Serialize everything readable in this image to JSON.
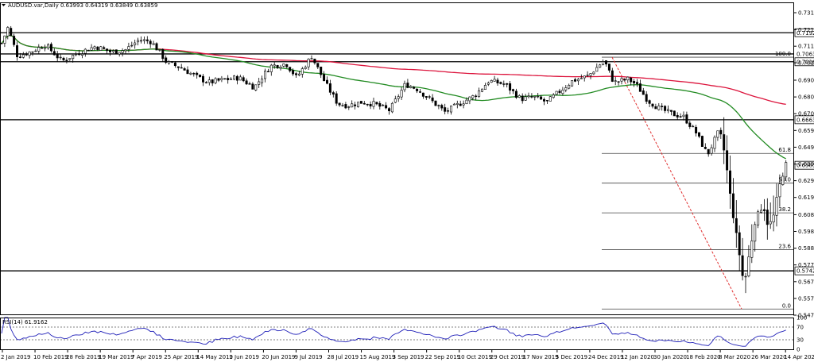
{
  "chart_data": {
    "type": "candlestick",
    "header": {
      "symbol": "AUDUSD.var,Daily",
      "ohlc": "0.63993 0.64319 0.63849 0.63859"
    },
    "price_axis": {
      "ticks": [
        "0.73150",
        "0.72120",
        "0.71110",
        "0.70100",
        "0.69040",
        "0.68020",
        "0.67000",
        "0.65980",
        "0.64960",
        "0.63930",
        "0.62920",
        "0.61900",
        "0.60850",
        "0.59830",
        "0.58810",
        "0.57790",
        "0.56770",
        "0.55750",
        "0.54730"
      ],
      "ylim": [
        0.5473,
        0.7315
      ]
    },
    "time_axis": {
      "labels": [
        "2 Jan 2019",
        "10 Feb 2019",
        "28 Feb 2019",
        "19 Mar 2019",
        "7 Apr 2019",
        "25 Apr 2019",
        "14 May 2019",
        "2 Jun 2019",
        "20 Jun 2019",
        "9 Jul 2019",
        "28 Jul 2019",
        "15 Aug 2019",
        "3 Sep 2019",
        "22 Sep 2019",
        "10 Oct 2019",
        "29 Oct 2019",
        "17 Nov 2019",
        "5 Dec 2019",
        "24 Dec 2019",
        "12 Jan 2020",
        "30 Jan 2020",
        "18 Feb 2020",
        "8 Mar 2020",
        "26 Mar 2020",
        "14 Apr 2020"
      ]
    },
    "horizontal_levels": [
      {
        "value": 0.71929,
        "label": "0.71929",
        "boxed": true
      },
      {
        "value": 0.70639,
        "label": "0.70639",
        "boxed": false
      },
      {
        "value": 0.70163,
        "label": "0.70163",
        "boxed": true
      },
      {
        "value": 0.66631,
        "label": "0.66631",
        "boxed": true
      },
      {
        "value": 0.57429,
        "label": "0.57429",
        "boxed": true
      }
    ],
    "current_price": {
      "value": 0.63859,
      "label": "0.63859"
    },
    "fibonacci": {
      "high": 0.70439,
      "low": 0.55103,
      "levels": [
        {
          "ratio": 1.0,
          "label": "100.0"
        },
        {
          "ratio": 0.618,
          "label": "61.8"
        },
        {
          "ratio": 0.5,
          "label": "50.0"
        },
        {
          "ratio": 0.382,
          "label": "38.2"
        },
        {
          "ratio": 0.236,
          "label": "23.6"
        },
        {
          "ratio": 0.0,
          "label": "0.0"
        }
      ]
    },
    "moving_averages": [
      {
        "color": "#dc143c"
      },
      {
        "color": "#228b22"
      }
    ],
    "rsi": {
      "label": "RSI(14) 61.9162",
      "ylim": [
        0,
        100
      ],
      "levels": [
        70,
        30
      ],
      "ticks": [
        "100",
        "70",
        "30",
        "0"
      ],
      "color": "#1f1fb8"
    },
    "series": {
      "waypoints": [
        [
          0,
          0.7105
        ],
        [
          10,
          0.7225
        ],
        [
          22,
          0.705
        ],
        [
          40,
          0.708
        ],
        [
          57,
          0.712
        ],
        [
          78,
          0.702
        ],
        [
          98,
          0.707
        ],
        [
          120,
          0.711
        ],
        [
          140,
          0.7075
        ],
        [
          158,
          0.709
        ],
        [
          175,
          0.715
        ],
        [
          190,
          0.714
        ],
        [
          200,
          0.708
        ],
        [
          210,
          0.701
        ],
        [
          228,
          0.698
        ],
        [
          245,
          0.693
        ],
        [
          262,
          0.689
        ],
        [
          280,
          0.6905
        ],
        [
          300,
          0.692
        ],
        [
          320,
          0.686
        ],
        [
          340,
          0.699
        ],
        [
          360,
          0.7005
        ],
        [
          373,
          0.692
        ],
        [
          392,
          0.705
        ],
        [
          410,
          0.688
        ],
        [
          425,
          0.676
        ],
        [
          438,
          0.675
        ],
        [
          455,
          0.677
        ],
        [
          470,
          0.676
        ],
        [
          490,
          0.672
        ],
        [
          510,
          0.688
        ],
        [
          525,
          0.685
        ],
        [
          545,
          0.677
        ],
        [
          560,
          0.671
        ],
        [
          578,
          0.676
        ],
        [
          597,
          0.681
        ],
        [
          615,
          0.69
        ],
        [
          635,
          0.688
        ],
        [
          655,
          0.679
        ],
        [
          672,
          0.68
        ],
        [
          688,
          0.677
        ],
        [
          700,
          0.682
        ],
        [
          720,
          0.69
        ],
        [
          740,
          0.693
        ],
        [
          760,
          0.7025
        ],
        [
          772,
          0.689
        ],
        [
          790,
          0.691
        ],
        [
          800,
          0.688
        ],
        [
          815,
          0.678
        ],
        [
          830,
          0.673
        ],
        [
          845,
          0.67
        ],
        [
          860,
          0.668
        ],
        [
          875,
          0.659
        ],
        [
          890,
          0.645
        ],
        [
          905,
          0.66
        ],
        [
          912,
          0.645
        ],
        [
          920,
          0.615
        ],
        [
          930,
          0.585
        ],
        [
          936,
          0.565
        ],
        [
          941,
          0.58
        ],
        [
          950,
          0.605
        ],
        [
          960,
          0.615
        ],
        [
          966,
          0.602
        ],
        [
          972,
          0.605
        ],
        [
          980,
          0.625
        ],
        [
          988,
          0.639
        ]
      ]
    }
  }
}
